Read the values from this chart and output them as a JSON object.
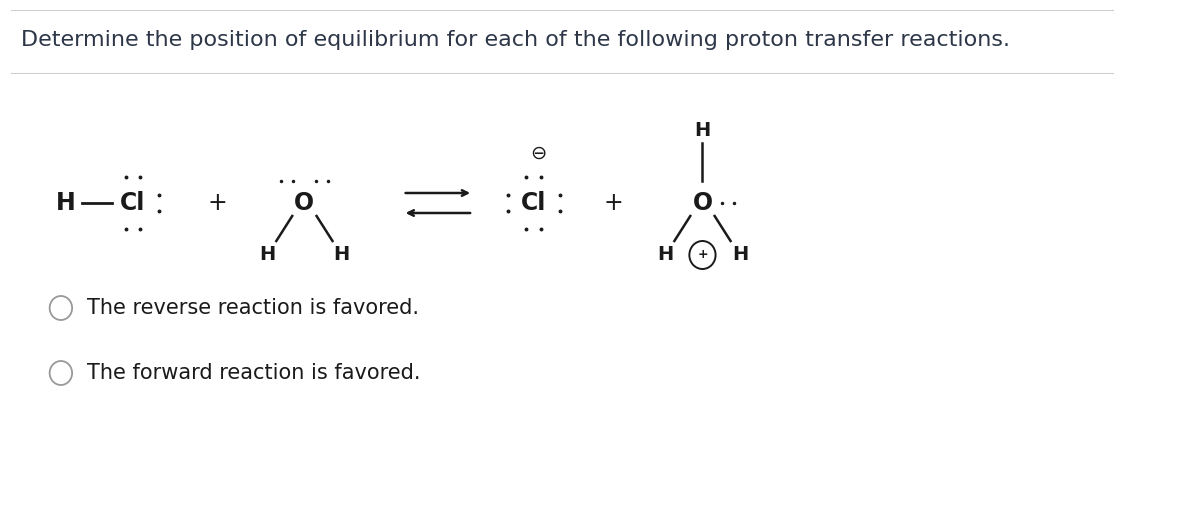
{
  "title": "Determine the position of equilibrium for each of the following proton transfer reactions.",
  "title_fontsize": 16,
  "title_color": "#2d3748",
  "bg_color": "#ffffff",
  "option1": "The reverse reaction is favored.",
  "option2": "The forward reaction is favored.",
  "option_fontsize": 15,
  "text_color": "#1a1a1a",
  "line_color": "#1a1a1a",
  "sep_color": "#d0d0d0",
  "radio_color": "#999999"
}
